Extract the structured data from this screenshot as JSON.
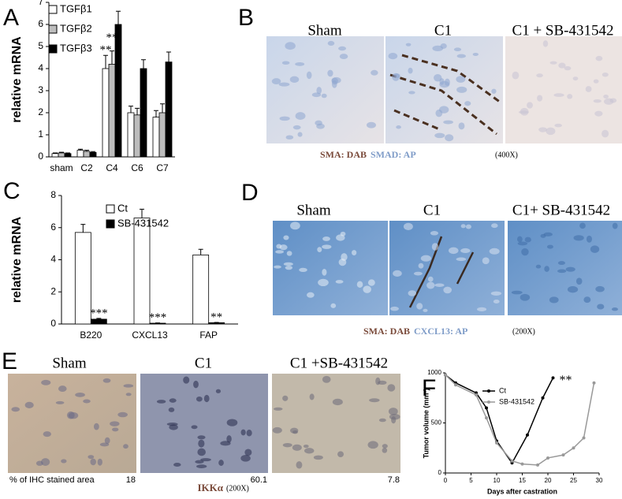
{
  "chart_data": [
    {
      "type": "bar",
      "ylabel": "relative mRNA",
      "categories": [
        "sham",
        "C2",
        "C4",
        "C6",
        "C7"
      ],
      "series": [
        {
          "name": "TGFβ1",
          "color": "#ffffff",
          "values": [
            0.15,
            0.3,
            4.0,
            2.0,
            1.8
          ],
          "errors": [
            0.03,
            0.05,
            0.6,
            0.3,
            0.3
          ]
        },
        {
          "name": "TGFβ2",
          "color": "#bdbdbd",
          "values": [
            0.18,
            0.25,
            4.2,
            1.9,
            2.0
          ],
          "errors": [
            0.03,
            0.05,
            0.6,
            0.3,
            0.4
          ]
        },
        {
          "name": "TGFβ3",
          "color": "#000000",
          "values": [
            0.15,
            0.2,
            6.0,
            4.0,
            4.3
          ],
          "errors": [
            0.03,
            0.04,
            0.6,
            0.4,
            0.45
          ]
        }
      ],
      "annotations": [
        {
          "text": "**",
          "category": "C4",
          "series": "TGFβ1"
        },
        {
          "text": "**",
          "category": "C4",
          "series": "TGFβ2"
        },
        {
          "text": "***",
          "category": "C4",
          "series": "TGFβ3"
        }
      ],
      "ylim": [
        0,
        7
      ],
      "yticks": [
        0,
        1,
        2,
        3,
        4,
        5,
        6,
        7
      ],
      "legend": "upper left"
    },
    {
      "type": "bar",
      "ylabel": "relative mRNA",
      "categories": [
        "B220",
        "CXCL13",
        "FAP"
      ],
      "series": [
        {
          "name": "Ct",
          "color": "#ffffff",
          "values": [
            5.7,
            6.6,
            4.3
          ],
          "errors": [
            0.5,
            0.55,
            0.35
          ]
        },
        {
          "name": "SB-431542",
          "color": "#000000",
          "values": [
            0.3,
            0.05,
            0.08
          ],
          "errors": [
            0.05,
            0.02,
            0.02
          ]
        }
      ],
      "annotations": [
        {
          "text": "***",
          "category": "B220",
          "series": "SB-431542"
        },
        {
          "text": "***",
          "category": "CXCL13",
          "series": "SB-431542"
        },
        {
          "text": "**",
          "category": "FAP",
          "series": "SB-431542"
        }
      ],
      "ylim": [
        0,
        8
      ],
      "yticks": [
        0,
        2,
        4,
        6,
        8
      ],
      "legend": "upper right"
    },
    {
      "type": "line",
      "xlabel": "Days after castration",
      "ylabel": "Tumor volume (mm³)",
      "series": [
        {
          "name": "Ct",
          "color": "#000000",
          "x": [
            0,
            2,
            6,
            8,
            10,
            13,
            16,
            19,
            21
          ],
          "values": [
            980,
            900,
            800,
            650,
            320,
            100,
            380,
            750,
            950
          ]
        },
        {
          "name": "SB-431542",
          "color": "#999999",
          "x": [
            0,
            2,
            6,
            8,
            10,
            13,
            15,
            18,
            20,
            23,
            25,
            27,
            29
          ],
          "values": [
            980,
            880,
            780,
            550,
            300,
            120,
            90,
            80,
            150,
            180,
            250,
            350,
            900
          ]
        }
      ],
      "annotations": [
        {
          "text": "**",
          "series": "Ct"
        }
      ],
      "xlim": [
        0,
        30
      ],
      "xticks": [
        0,
        5,
        10,
        15,
        20,
        25,
        30
      ],
      "ylim": [
        0,
        1000
      ],
      "yticks": [
        0,
        500,
        1000
      ],
      "legend": "upper center"
    }
  ],
  "panel_letters": [
    "A",
    "B",
    "C",
    "D",
    "E",
    "F"
  ],
  "panel_b": {
    "titles": [
      "Sham",
      "C1",
      "C1 + SB-431542"
    ],
    "stains": [
      "SMA: DAB",
      "SMAD: AP"
    ],
    "magnification": "(400X)"
  },
  "panel_d": {
    "titles": [
      "Sham",
      "C1",
      "C1+ SB-431542"
    ],
    "stains": [
      "SMA: DAB",
      "CXCL13: AP"
    ],
    "magnification": "(200X)"
  },
  "panel_e": {
    "titles": [
      "Sham",
      "C1",
      "C1 +SB-431542"
    ],
    "area_label": "% of IHC stained area",
    "areas": [
      "18",
      "60.1",
      "7.8"
    ],
    "stain": "IKKα",
    "magnification": "(200X)"
  }
}
